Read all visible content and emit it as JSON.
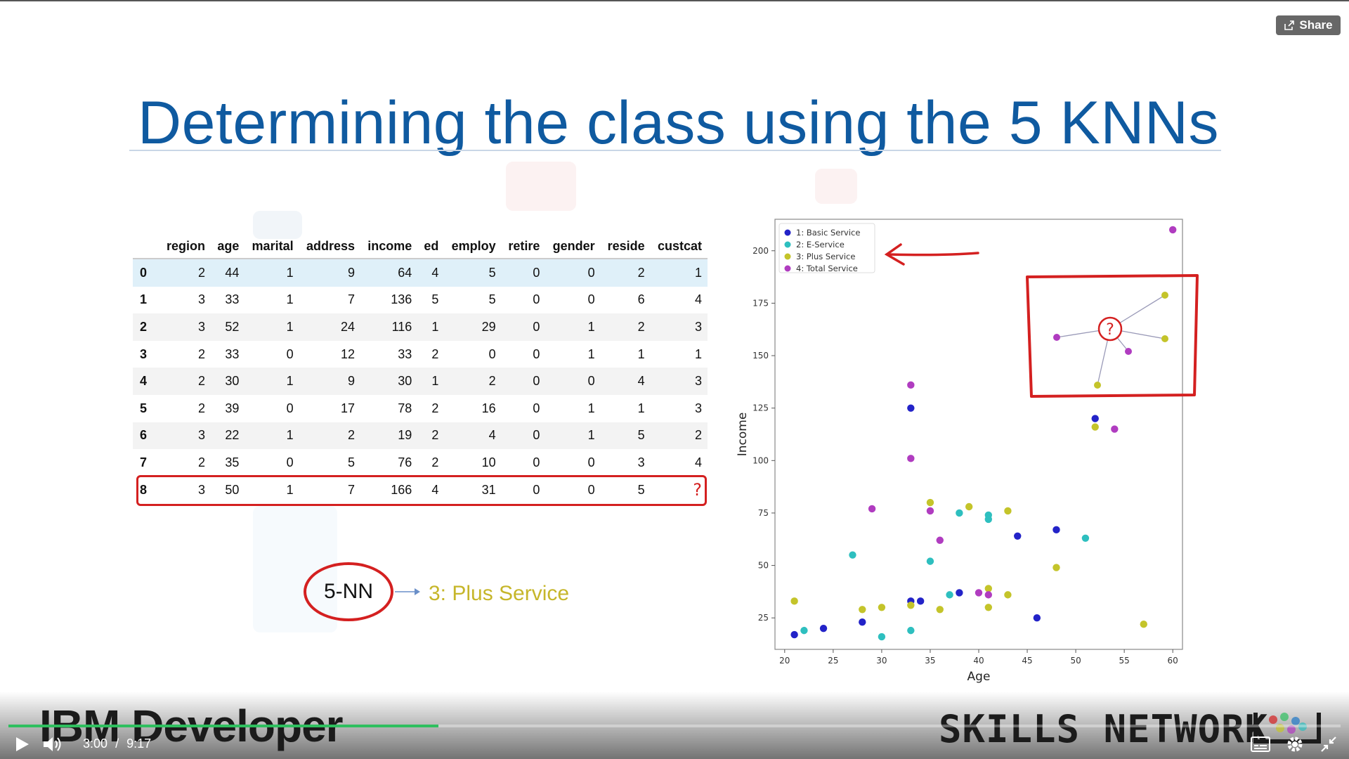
{
  "player": {
    "share_label": "Share",
    "current_time": "3:00",
    "time_separator": "/",
    "duration": "9:17",
    "progress_fraction": 0.323
  },
  "slide": {
    "title": "Determining the class using the 5 KNNs",
    "knn_label": "5-NN",
    "knn_result": "3: Plus Service",
    "query_mark": "?",
    "brand_left": "IBM Developer",
    "brand_right": "SKILLS NETWORK"
  },
  "table": {
    "columns": [
      "",
      "region",
      "age",
      "marital",
      "address",
      "income",
      "ed",
      "employ",
      "retire",
      "gender",
      "reside",
      "custcat"
    ],
    "rows": [
      [
        "0",
        "2",
        "44",
        "1",
        "9",
        "64",
        "4",
        "5",
        "0",
        "0",
        "2",
        "1"
      ],
      [
        "1",
        "3",
        "33",
        "1",
        "7",
        "136",
        "5",
        "5",
        "0",
        "0",
        "6",
        "4"
      ],
      [
        "2",
        "3",
        "52",
        "1",
        "24",
        "116",
        "1",
        "29",
        "0",
        "1",
        "2",
        "3"
      ],
      [
        "3",
        "2",
        "33",
        "0",
        "12",
        "33",
        "2",
        "0",
        "0",
        "1",
        "1",
        "1"
      ],
      [
        "4",
        "2",
        "30",
        "1",
        "9",
        "30",
        "1",
        "2",
        "0",
        "0",
        "4",
        "3"
      ],
      [
        "5",
        "2",
        "39",
        "0",
        "17",
        "78",
        "2",
        "16",
        "0",
        "1",
        "1",
        "3"
      ],
      [
        "6",
        "3",
        "22",
        "1",
        "2",
        "19",
        "2",
        "4",
        "0",
        "1",
        "5",
        "2"
      ],
      [
        "7",
        "2",
        "35",
        "0",
        "5",
        "76",
        "2",
        "10",
        "0",
        "0",
        "3",
        "4"
      ],
      [
        "8",
        "3",
        "50",
        "1",
        "7",
        "166",
        "4",
        "31",
        "0",
        "0",
        "5",
        "?"
      ]
    ]
  },
  "chart_data": {
    "type": "scatter",
    "xlabel": "Age",
    "ylabel": "Income",
    "xlim": [
      19,
      61
    ],
    "ylim": [
      10,
      215
    ],
    "xticks": [
      20,
      25,
      30,
      35,
      40,
      45,
      50,
      55,
      60
    ],
    "yticks": [
      25,
      50,
      75,
      100,
      125,
      150,
      175,
      200
    ],
    "legend_position": "top-left",
    "series": [
      {
        "name": "1: Basic Service",
        "color": "#2323c8",
        "points": [
          [
            21,
            17
          ],
          [
            24,
            20
          ],
          [
            28,
            23
          ],
          [
            33,
            33
          ],
          [
            33,
            125
          ],
          [
            34,
            33
          ],
          [
            38,
            37
          ],
          [
            44,
            64
          ],
          [
            46,
            25
          ],
          [
            48,
            67
          ],
          [
            52,
            120
          ]
        ]
      },
      {
        "name": "2: E-Service",
        "color": "#2ebfbf",
        "points": [
          [
            22,
            19
          ],
          [
            27,
            55
          ],
          [
            30,
            16
          ],
          [
            33,
            19
          ],
          [
            35,
            52
          ],
          [
            37,
            36
          ],
          [
            38,
            75
          ],
          [
            41,
            72
          ],
          [
            41,
            74
          ],
          [
            51,
            63
          ]
        ]
      },
      {
        "name": "3: Plus Service",
        "color": "#c4c42a",
        "points": [
          [
            21,
            33
          ],
          [
            28,
            29
          ],
          [
            30,
            30
          ],
          [
            33,
            31
          ],
          [
            35,
            80
          ],
          [
            36,
            29
          ],
          [
            39,
            78
          ],
          [
            41,
            30
          ],
          [
            41,
            39
          ],
          [
            43,
            36
          ],
          [
            43,
            76
          ],
          [
            48,
            49
          ],
          [
            52,
            116
          ],
          [
            57,
            22
          ]
        ]
      },
      {
        "name": "4: Total Service",
        "color": "#b03cc0",
        "points": [
          [
            29,
            77
          ],
          [
            33,
            136
          ],
          [
            33,
            101
          ],
          [
            35,
            76
          ],
          [
            36,
            62
          ],
          [
            40,
            37
          ],
          [
            41,
            36
          ],
          [
            54,
            115
          ],
          [
            60,
            210
          ]
        ]
      }
    ]
  },
  "inset": {
    "query_label": "?",
    "neighbors": [
      {
        "color": "#c4c42a",
        "dx": 78,
        "dy": -48
      },
      {
        "color": "#c4c42a",
        "dx": 78,
        "dy": 14
      },
      {
        "color": "#b03cc0",
        "dx": 26,
        "dy": 32
      },
      {
        "color": "#c4c42a",
        "dx": -18,
        "dy": 80
      },
      {
        "color": "#b03cc0",
        "dx": -76,
        "dy": 12
      }
    ]
  },
  "colors": {
    "title": "#0f5aa0",
    "annotation_red": "#d42020",
    "progress": "#2fbf5f"
  }
}
